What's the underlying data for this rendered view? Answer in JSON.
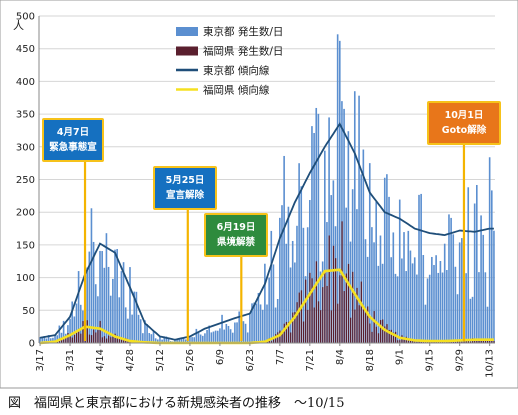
{
  "caption": "図　福岡県と東京都における新規感染者の推移　～10/15",
  "chart_data": {
    "type": "bar",
    "ylabel_unit": "人",
    "ylim": [
      0,
      500
    ],
    "yticks": [
      0,
      50,
      100,
      150,
      200,
      250,
      300,
      350,
      400,
      450,
      500
    ],
    "x_tick_labels": [
      "3/17",
      "3/31",
      "4/14",
      "4/28",
      "5/12",
      "5/26",
      "6/9",
      "6/23",
      "7/7",
      "7/21",
      "8/4",
      "8/18",
      "9/1",
      "9/15",
      "9/29",
      "10/13"
    ],
    "legend": [
      {
        "label": "東京都 発生数/日",
        "color": "#5b8fd0",
        "kind": "bar"
      },
      {
        "label": "福岡県 発生数/日",
        "color": "#5a1f2e",
        "kind": "bar"
      },
      {
        "label": "東京都 傾向線",
        "color": "#1f4e79",
        "kind": "line"
      },
      {
        "label": "福岡県 傾向線",
        "color": "#f5e020",
        "kind": "line"
      }
    ],
    "annotations": [
      {
        "lines": [
          "4月7日",
          "緊急事態宣"
        ],
        "bg": "#1570c0",
        "day": 21
      },
      {
        "lines": [
          "5月25日",
          "宣言解除"
        ],
        "bg": "#1570c0",
        "day": 69
      },
      {
        "lines": [
          "6月19日",
          "県境解禁"
        ],
        "bg": "#2e8b3d",
        "day": 94
      },
      {
        "lines": [
          "10月1日",
          "Goto解除"
        ],
        "bg": "#e8761a",
        "day": 198
      }
    ],
    "x": {
      "start_date": "3/17",
      "days": 213
    },
    "tokyo_trend": {
      "days": [
        0,
        7,
        14,
        21,
        28,
        35,
        42,
        49,
        56,
        63,
        70,
        77,
        84,
        91,
        98,
        105,
        112,
        119,
        126,
        133,
        140,
        147,
        154,
        161,
        168,
        175,
        182,
        189,
        196,
        203,
        210,
        212
      ],
      "values": [
        8,
        12,
        40,
        105,
        152,
        138,
        85,
        30,
        10,
        5,
        10,
        22,
        30,
        38,
        45,
        90,
        160,
        215,
        260,
        300,
        335,
        290,
        230,
        200,
        190,
        175,
        168,
        165,
        172,
        170,
        175,
        175
      ]
    },
    "fukuoka_trend": {
      "days": [
        0,
        7,
        14,
        21,
        28,
        35,
        42,
        49,
        56,
        63,
        70,
        77,
        84,
        91,
        98,
        105,
        112,
        119,
        126,
        133,
        140,
        147,
        154,
        161,
        168,
        175,
        182,
        189,
        196,
        203,
        212
      ],
      "values": [
        0,
        2,
        12,
        25,
        22,
        10,
        3,
        1,
        0,
        0,
        0,
        0,
        0,
        0,
        0,
        2,
        12,
        40,
        75,
        110,
        112,
        75,
        40,
        20,
        8,
        4,
        3,
        3,
        4,
        5,
        5
      ]
    },
    "tokyo_daily_peaks": [
      {
        "day": 24,
        "value": 206
      },
      {
        "day": 114,
        "value": 286
      },
      {
        "day": 139,
        "value": 472
      },
      {
        "day": 140,
        "value": 462
      },
      {
        "day": 147,
        "value": 385
      },
      {
        "day": 210,
        "value": 284
      }
    ],
    "fukuoka_daily_peak": {
      "day": 141,
      "value": 186
    }
  }
}
